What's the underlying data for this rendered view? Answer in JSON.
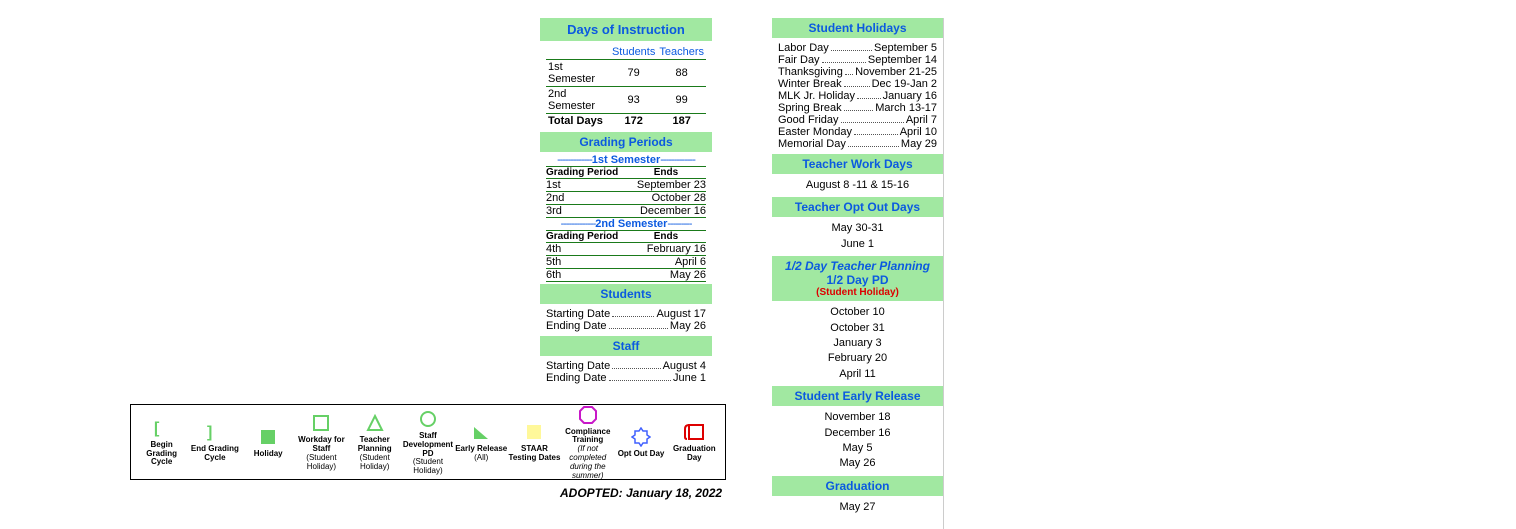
{
  "days_of_instruction": {
    "header": "Days of Instruction",
    "col_students": "Students",
    "col_teachers": "Teachers",
    "rows": [
      {
        "label": "1st Semester",
        "students": "79",
        "teachers": "88"
      },
      {
        "label": "2nd Semester",
        "students": "93",
        "teachers": "99"
      }
    ],
    "total": {
      "label": "Total Days",
      "students": "172",
      "teachers": "187"
    }
  },
  "grading_periods": {
    "header": "Grading Periods",
    "sem1_label": "1st Semester",
    "sem2_label": "2nd Semester",
    "col_period": "Grading Period",
    "col_ends": "Ends",
    "sem1": [
      {
        "n": "1st",
        "ends": "September 23"
      },
      {
        "n": "2nd",
        "ends": "October 28"
      },
      {
        "n": "3rd",
        "ends": "December 16"
      }
    ],
    "sem2": [
      {
        "n": "4th",
        "ends": "February 16"
      },
      {
        "n": "5th",
        "ends": "April   6"
      },
      {
        "n": "6th",
        "ends": "May 26"
      }
    ]
  },
  "students": {
    "header": "Students",
    "start_lbl": "Starting Date",
    "start_val": "August 17",
    "end_lbl": "Ending Date",
    "end_val": "May 26"
  },
  "staff": {
    "header": "Staff",
    "start_lbl": "Starting Date",
    "start_val": "August  4",
    "end_lbl": "Ending Date",
    "end_val": "June 1"
  },
  "student_holidays": {
    "header": "Student Holidays",
    "items": [
      {
        "lbl": "Labor Day",
        "val": "September 5"
      },
      {
        "lbl": "Fair Day",
        "val": "September 14"
      },
      {
        "lbl": "Thanksgiving",
        "val": "November 21-25"
      },
      {
        "lbl": "Winter Break",
        "val": "Dec 19-Jan 2"
      },
      {
        "lbl": "MLK Jr. Holiday",
        "val": "January 16"
      },
      {
        "lbl": "Spring Break",
        "val": "March 13-17"
      },
      {
        "lbl": "Good Friday",
        "val": "April 7"
      },
      {
        "lbl": "Easter Monday",
        "val": "April 10"
      },
      {
        "lbl": "Memorial Day",
        "val": "May 29"
      }
    ]
  },
  "teacher_work_days": {
    "header": "Teacher Work Days",
    "body": "August 8 -11 & 15-16"
  },
  "teacher_opt_out": {
    "header": "Teacher Opt Out Days",
    "lines": [
      "May 30-31",
      "June 1"
    ]
  },
  "half_day": {
    "line1": "1/2 Day Teacher Planning",
    "line2": "1/2 Day PD",
    "line3": "(Student Holiday)",
    "lines": [
      "October 10",
      "October 31",
      "January 3",
      "February 20",
      "April 11"
    ]
  },
  "early_release": {
    "header": "Student Early Release",
    "lines": [
      "November 18",
      "December 16",
      "May 5",
      "May 26"
    ]
  },
  "graduation": {
    "header": "Graduation",
    "body": "May 27"
  },
  "legend": {
    "items": [
      {
        "key": "begin-cycle",
        "label": "Begin Grading Cycle",
        "sub": ""
      },
      {
        "key": "end-cycle",
        "label": "End Grading Cycle",
        "sub": ""
      },
      {
        "key": "holiday",
        "label": "Holiday",
        "sub": ""
      },
      {
        "key": "workday-staff",
        "label": "Workday for Staff",
        "sub": "(Student Holiday)"
      },
      {
        "key": "teacher-planning",
        "label": "Teacher Planning",
        "sub": "(Student Holiday)"
      },
      {
        "key": "staff-dev",
        "label": "Staff Development PD",
        "sub": "(Student Holiday)"
      },
      {
        "key": "early-release",
        "label": "Early Release",
        "sub": "(All)"
      },
      {
        "key": "staar",
        "label": "STAAR Testing Dates",
        "sub": ""
      },
      {
        "key": "compliance",
        "label": "Compliance Training",
        "sub": "(If not completed during the summer)",
        "italic": true
      },
      {
        "key": "opt-out",
        "label": "Opt Out Day",
        "sub": ""
      },
      {
        "key": "graduation-day",
        "label": "Graduation Day",
        "sub": ""
      }
    ]
  },
  "adopted": "ADOPTED:  January 18, 2022",
  "colors": {
    "green_bg": "#a1e8a1",
    "blue_text": "#0b5ae0",
    "green_line": "#1a7a1a",
    "red": "#d00",
    "magenta": "#c818c8",
    "blue_outline": "#4060ff",
    "yellow": "#fff89a",
    "green_fill": "#66d066"
  }
}
